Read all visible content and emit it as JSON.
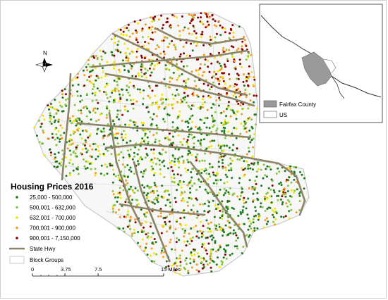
{
  "legend": {
    "title": "Housing Prices 2016",
    "classes": [
      {
        "label": "25,000 - 500,000",
        "color": "#1f7a1f"
      },
      {
        "label": "500,001 - 632,000",
        "color": "#8cc63f"
      },
      {
        "label": "632,001 - 700,000",
        "color": "#f2e600"
      },
      {
        "label": "700,001 - 900,000",
        "color": "#f59a1c"
      },
      {
        "label": "900,001 - 7,150,000",
        "color": "#8b0000"
      }
    ],
    "highway_label": "State Hwy",
    "highway_color": "#8c8466",
    "blockgroups_label": "Block Groups"
  },
  "scale_bar": {
    "ticks": [
      "0",
      "3.75",
      "7.5",
      "15 Miles"
    ]
  },
  "north_arrow": {
    "label": "N"
  },
  "inset": {
    "items": [
      {
        "label": "Fairfax County",
        "color": "#9a9a9a"
      },
      {
        "label": "US",
        "color": "#ffffff"
      }
    ]
  }
}
